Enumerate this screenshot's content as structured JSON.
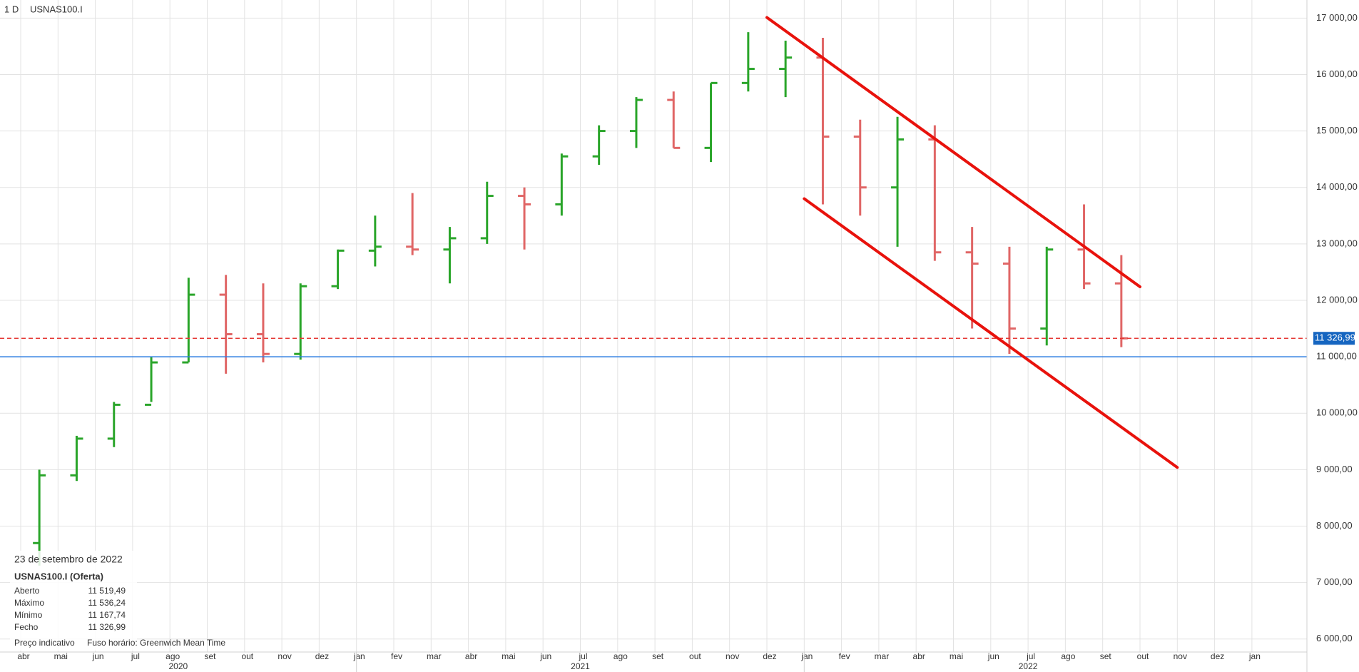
{
  "chart_data": {
    "type": "ohlc",
    "interval": "1 D",
    "symbol": "USNAS100.I",
    "x": [
      "2020-04",
      "2020-05",
      "2020-06",
      "2020-07",
      "2020-08",
      "2020-09",
      "2020-10",
      "2020-11",
      "2020-12",
      "2021-01",
      "2021-02",
      "2021-03",
      "2021-04",
      "2021-05",
      "2021-06",
      "2021-07",
      "2021-08",
      "2021-09",
      "2021-10",
      "2021-11",
      "2021-12",
      "2022-01",
      "2022-02",
      "2022-03",
      "2022-04",
      "2022-05",
      "2022-06",
      "2022-07",
      "2022-08",
      "2022-09"
    ],
    "open": [
      7700,
      8900,
      9550,
      10150,
      10900,
      12100,
      11400,
      11050,
      12250,
      12880,
      12950,
      12900,
      13100,
      13850,
      13700,
      14550,
      15000,
      15550,
      14700,
      15850,
      16100,
      16300,
      14900,
      14000,
      14850,
      12850,
      12650,
      11500,
      12900,
      12300
    ],
    "high": [
      9000,
      9600,
      10200,
      11000,
      12400,
      12450,
      12300,
      12300,
      12900,
      13500,
      13900,
      13300,
      14100,
      14000,
      14600,
      15100,
      15600,
      15700,
      15850,
      16750,
      16600,
      16650,
      15200,
      15250,
      15100,
      13300,
      12950,
      12950,
      13700,
      12800
    ],
    "low": [
      7300,
      8800,
      9400,
      10200,
      10900,
      10700,
      10900,
      10950,
      12200,
      12600,
      12800,
      12300,
      13000,
      12900,
      13500,
      14400,
      14700,
      14700,
      14450,
      15700,
      15600,
      13700,
      13500,
      12950,
      12700,
      11500,
      11050,
      11200,
      12200,
      11170
    ],
    "close": [
      8900,
      9550,
      10150,
      10900,
      12100,
      11400,
      11050,
      12250,
      12880,
      12950,
      12900,
      13100,
      13850,
      13700,
      14550,
      15000,
      15550,
      14700,
      15850,
      16100,
      16300,
      14900,
      14000,
      14850,
      12850,
      12650,
      11500,
      12900,
      12300,
      11327
    ],
    "up_color": "#2aa52a",
    "down_color": "#e06666",
    "categories": [
      "abr",
      "mai",
      "jun",
      "jul",
      "ago",
      "set",
      "out",
      "nov",
      "dez",
      "jan",
      "fev",
      "mar",
      "abr",
      "mai",
      "jun",
      "jul",
      "ago",
      "set",
      "out",
      "nov",
      "dez",
      "jan",
      "fev",
      "mar",
      "abr",
      "mai",
      "jun",
      "jul",
      "ago",
      "set",
      "out",
      "nov",
      "dez",
      "jan"
    ],
    "year_labels": [
      "2020",
      "2021",
      "2022"
    ],
    "ylim": [
      5770,
      17320
    ],
    "yticks": [
      {
        "value": 6000,
        "label": "6 000,00"
      },
      {
        "value": 7000,
        "label": "7 000,00"
      },
      {
        "value": 8000,
        "label": "8 000,00"
      },
      {
        "value": 9000,
        "label": "9 000,00"
      },
      {
        "value": 10000,
        "label": "10 000,00"
      },
      {
        "value": 11000,
        "label": "11 000,00"
      },
      {
        "value": 12000,
        "label": "12 000,00"
      },
      {
        "value": 13000,
        "label": "13 000,00"
      },
      {
        "value": 14000,
        "label": "14 000,00"
      },
      {
        "value": 15000,
        "label": "15 000,00"
      },
      {
        "value": 16000,
        "label": "16 000,00"
      },
      {
        "value": 17000,
        "label": "17 000,00"
      }
    ],
    "grid": true,
    "h_lines": [
      {
        "value": 11326.99,
        "label": "11 326,99",
        "color": "#e53935",
        "dash": true,
        "label_color": "#1565c0"
      },
      {
        "value": 11000,
        "color": "#2f7de1"
      }
    ],
    "trend_lines": [
      {
        "color": "#e8120c",
        "x": [
          "2021-12",
          "2022-10"
        ],
        "values": [
          17010,
          12240
        ]
      },
      {
        "color": "#e8120c",
        "x": [
          "2022-01",
          "2022-11"
        ],
        "values": [
          13800,
          9040
        ]
      }
    ],
    "info": {
      "date": "23 de setembro de 2022",
      "title": "USNAS100.I (Oferta)",
      "rows": [
        [
          "Aberto",
          "11 519,49"
        ],
        [
          "Máximo",
          "11 536,24"
        ],
        [
          "Mínimo",
          "11 167,74"
        ],
        [
          "Fecho",
          "11 326,99"
        ]
      ],
      "note": "Preço indicativo",
      "timezone": "Fuso horário: Greenwich Mean Time"
    }
  }
}
